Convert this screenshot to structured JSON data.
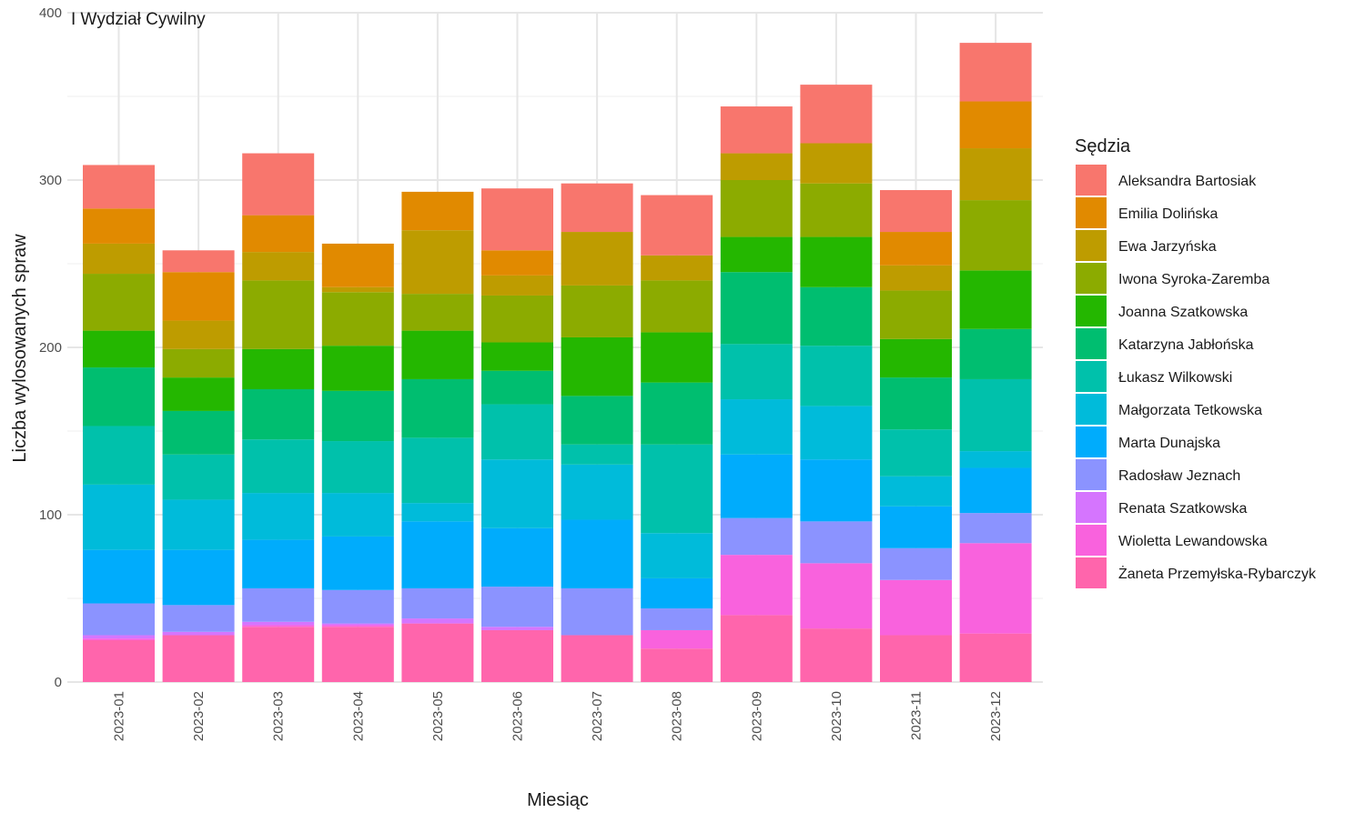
{
  "chart_data": {
    "type": "bar",
    "stacked": true,
    "title": "I Wydział Cywilny",
    "xlabel": "Miesiąc",
    "ylabel": "Liczba wylosowanych spraw",
    "ylim": [
      0,
      400
    ],
    "yticks": [
      0,
      100,
      200,
      300,
      400
    ],
    "grid": true,
    "legend_title": "Sędzia",
    "legend_position": "right",
    "categories": [
      "2023-01",
      "2023-02",
      "2023-03",
      "2023-04",
      "2023-05",
      "2023-06",
      "2023-07",
      "2023-08",
      "2023-09",
      "2023-10",
      "2023-11",
      "2023-12"
    ],
    "series": [
      {
        "name": "Aleksandra Bartosiak",
        "color": "#F8766D",
        "values": [
          26,
          13,
          37,
          0,
          0,
          37,
          29,
          36,
          28,
          35,
          25,
          35
        ]
      },
      {
        "name": "Emilia Dolińska",
        "color": "#E18A00",
        "values": [
          21,
          29,
          22,
          26,
          23,
          15,
          0,
          0,
          0,
          0,
          20,
          28
        ]
      },
      {
        "name": "Ewa Jarzyńska",
        "color": "#BE9C00",
        "values": [
          18,
          17,
          17,
          3,
          38,
          12,
          32,
          15,
          16,
          24,
          15,
          31
        ]
      },
      {
        "name": "Iwona Syroka-Zaremba",
        "color": "#8CAB00",
        "values": [
          34,
          17,
          41,
          32,
          22,
          28,
          31,
          31,
          34,
          32,
          29,
          42
        ]
      },
      {
        "name": "Joanna Szatkowska",
        "color": "#24B700",
        "values": [
          22,
          20,
          24,
          27,
          29,
          17,
          35,
          30,
          21,
          30,
          23,
          35
        ]
      },
      {
        "name": "Katarzyna Jabłońska",
        "color": "#00BE70",
        "values": [
          35,
          26,
          30,
          30,
          35,
          20,
          29,
          37,
          43,
          35,
          31,
          30
        ]
      },
      {
        "name": "Łukasz Wilkowski",
        "color": "#00C1AB",
        "values": [
          35,
          27,
          32,
          31,
          39,
          33,
          12,
          53,
          33,
          36,
          28,
          43
        ]
      },
      {
        "name": "Małgorzata Tetkowska",
        "color": "#00BBDA",
        "values": [
          39,
          30,
          28,
          26,
          11,
          41,
          33,
          27,
          33,
          32,
          18,
          10
        ]
      },
      {
        "name": "Marta Dunajska",
        "color": "#00ACFC",
        "values": [
          32,
          33,
          29,
          32,
          40,
          35,
          41,
          18,
          38,
          37,
          25,
          27
        ]
      },
      {
        "name": "Radosław Jeznach",
        "color": "#8B93FF",
        "values": [
          19,
          16,
          20,
          20,
          18,
          24,
          28,
          13,
          22,
          25,
          19,
          18
        ]
      },
      {
        "name": "Renata Szatkowska",
        "color": "#D575FE",
        "values": [
          2,
          2,
          2,
          1,
          3,
          2,
          0,
          0,
          0,
          0,
          0,
          0
        ]
      },
      {
        "name": "Wioletta Lewandowska",
        "color": "#F962DD",
        "values": [
          1,
          0,
          1,
          1,
          0,
          0,
          0,
          11,
          36,
          39,
          33,
          54
        ]
      },
      {
        "name": "Żaneta Przemyłska-Rybarczyk",
        "color": "#FF65AC",
        "values": [
          25,
          28,
          33,
          33,
          35,
          31,
          28,
          20,
          40,
          32,
          28,
          29
        ]
      }
    ]
  }
}
